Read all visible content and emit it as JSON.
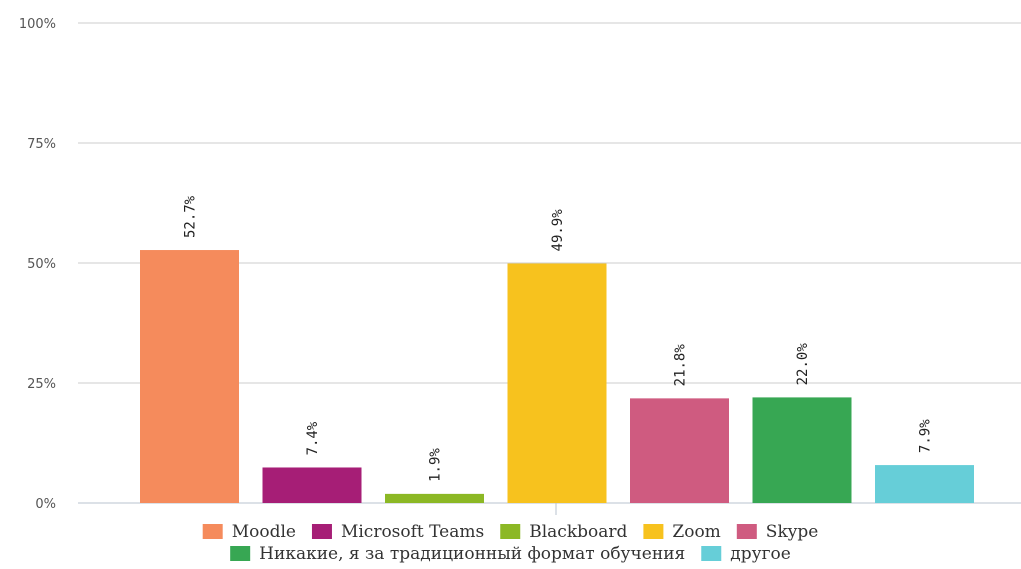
{
  "chart_data": {
    "type": "bar",
    "categories": [
      "Moodle",
      "Microsoft Teams",
      "Blackboard",
      "Zoom",
      "Skype",
      "Никакие, я за традиционный формат обучения",
      "другое"
    ],
    "values": [
      52.7,
      7.4,
      1.9,
      49.9,
      21.8,
      22.0,
      7.9
    ],
    "value_labels": [
      "52.7%",
      "7.4%",
      "1.9%",
      "49.9%",
      "21.8%",
      "22.0%",
      "7.9%"
    ],
    "colors": [
      "#f58b5c",
      "#a61e76",
      "#8cb825",
      "#f7c21e",
      "#cf5b80",
      "#37a753",
      "#66ced8"
    ],
    "ylim": [
      0,
      100
    ],
    "yticks": [
      0,
      25,
      50,
      75,
      100
    ],
    "ytick_labels": [
      "0%",
      "25%",
      "50%",
      "75%",
      "100%"
    ],
    "grid": true,
    "legend_position": "bottom",
    "legend": [
      "Moodle",
      "Microsoft Teams",
      "Blackboard",
      "Zoom",
      "Skype",
      "Никакие, я за традиционный формат обучения",
      "другое"
    ]
  }
}
